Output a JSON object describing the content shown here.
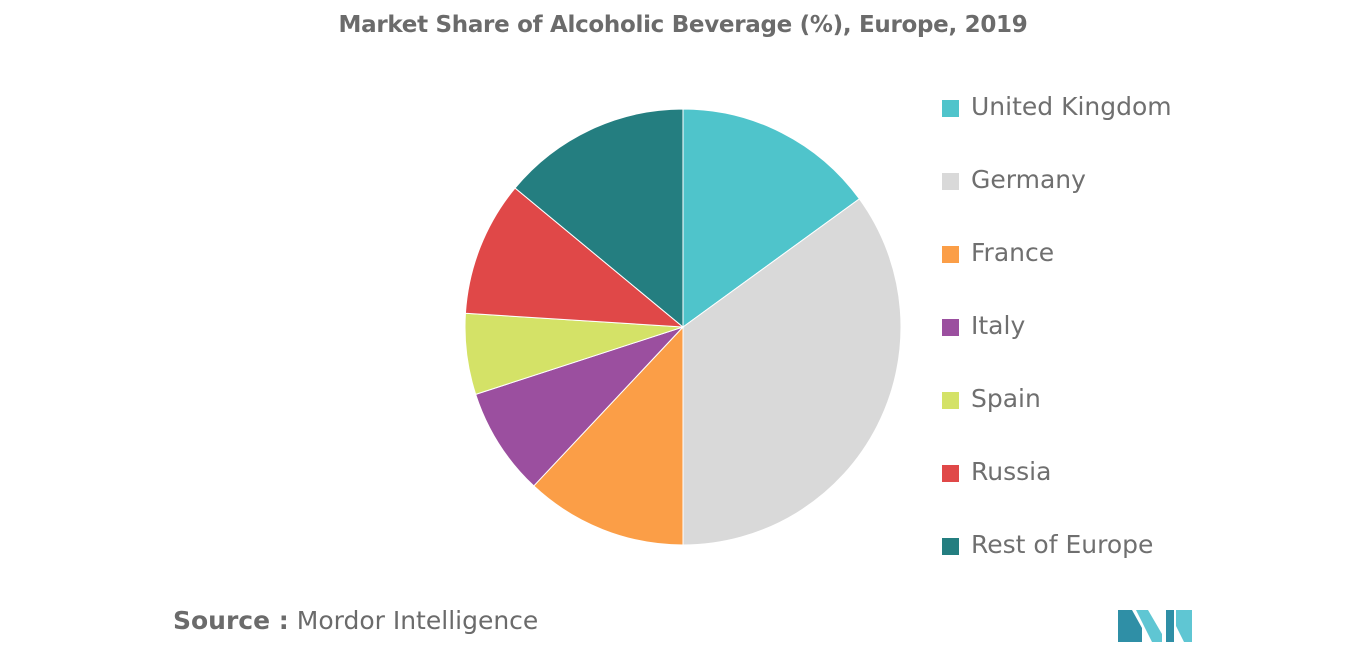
{
  "chart_data": {
    "type": "pie",
    "title": "Market Share of Alcoholic Beverage (%), Europe, 2019",
    "categories": [
      "United Kingdom",
      "Germany",
      "France",
      "Italy",
      "Spain",
      "Russia",
      "Rest of Europe"
    ],
    "values": [
      15,
      35,
      12,
      8,
      6,
      10,
      14
    ],
    "colors": [
      "#4fc4cb",
      "#d9d9d9",
      "#fb9e47",
      "#9b4f9f",
      "#d4e267",
      "#e04848",
      "#247e80"
    ],
    "legend_position": "right"
  },
  "source": {
    "key": "Source :",
    "value": "Mordor Intelligence"
  },
  "logo": {
    "name": "mordor-intelligence-logo",
    "colors": [
      "#2f8fa6",
      "#5fc6d3"
    ]
  }
}
